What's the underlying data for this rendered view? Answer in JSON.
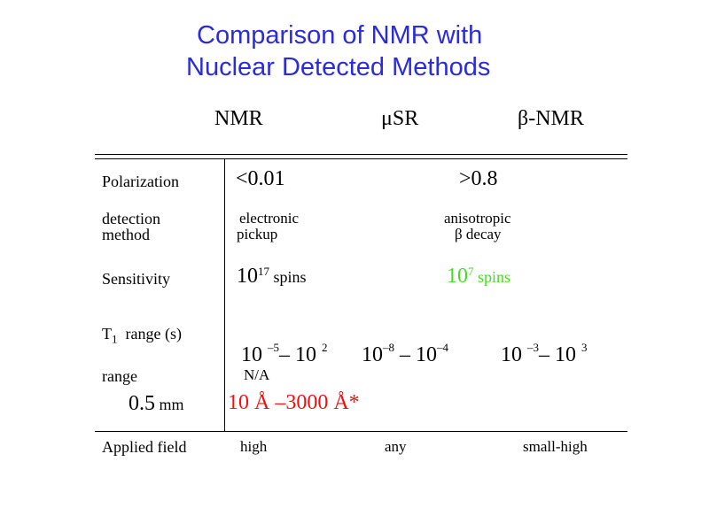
{
  "title": {
    "line1": "Comparison of NMR with",
    "line2": "Nuclear Detected Methods"
  },
  "columns": {
    "nmr": "NMR",
    "musr": "μSR",
    "beta_nmr": "β-NMR"
  },
  "rows": {
    "polarization": {
      "label": "Polarization",
      "nmr": "<0.01",
      "nuclear": ">0.8"
    },
    "detection": {
      "label_line1": "detection",
      "label_line2": "method",
      "nmr_line1": "electronic",
      "nmr_line2": "pickup",
      "nuclear_line1": "anisotropic",
      "nuclear_line2": "β decay"
    },
    "sensitivity": {
      "label": "Sensitivity",
      "nmr_base": "10",
      "nmr_exp": "17",
      "nmr_unit": " spins",
      "nuclear_base": "10",
      "nuclear_exp": "7",
      "nuclear_unit": " spins"
    },
    "t1": {
      "label_main": "T",
      "label_sub": "1",
      "label_rest": "  range (s)",
      "nmr": {
        "a": "10 ",
        "a_exp": "–5",
        "mid": "– 10 ",
        "b_exp": "2"
      },
      "musr": {
        "a": "10",
        "a_exp": "–8",
        "mid": " – 10",
        "b_exp": "–4"
      },
      "beta": {
        "a": "10 ",
        "a_exp": "–3",
        "mid": "– 10 ",
        "b_exp": "3"
      }
    },
    "range": {
      "label": "range",
      "nmr": "N/A",
      "value": "0.5",
      "unit": " mm",
      "beta": "10 Å –3000 Å*"
    },
    "field": {
      "label": "Applied field",
      "nmr": "high",
      "musr": "any",
      "beta": "small-high"
    }
  },
  "colors": {
    "title": "#2b2bd9",
    "highlight_green": "#44dd22",
    "highlight_red": "#ee1111"
  }
}
